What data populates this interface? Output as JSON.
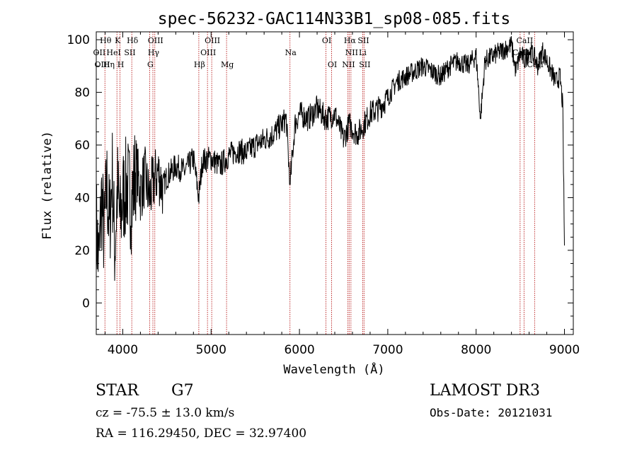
{
  "chart_data": {
    "type": "line",
    "title": "spec-56232-GAC114N33B1_sp08-085.fits",
    "xlabel": "Wavelength (Å)",
    "ylabel": "Flux (relative)",
    "xlim": [
      3700,
      9100
    ],
    "ylim": [
      -12,
      103
    ],
    "xticks": [
      4000,
      5000,
      6000,
      7000,
      8000,
      9000
    ],
    "yticks": [
      0,
      20,
      40,
      60,
      80,
      100
    ],
    "xtick_labels": [
      "4000",
      "5000",
      "6000",
      "7000",
      "8000",
      "9000"
    ],
    "ytick_labels": [
      "0",
      "20",
      "40",
      "60",
      "80",
      "100"
    ],
    "series": [
      {
        "name": "flux",
        "x": [
          3700,
          3730,
          3760,
          3790,
          3820,
          3850,
          3880,
          3910,
          3940,
          3970,
          4000,
          4050,
          4100,
          4150,
          4200,
          4250,
          4300,
          4350,
          4400,
          4450,
          4500,
          4600,
          4700,
          4800,
          4861,
          4900,
          5000,
          5100,
          5200,
          5300,
          5400,
          5500,
          5600,
          5700,
          5800,
          5850,
          5893,
          5950,
          6000,
          6100,
          6200,
          6300,
          6400,
          6500,
          6563,
          6650,
          6700,
          6800,
          6900,
          7000,
          7100,
          7200,
          7300,
          7400,
          7500,
          7600,
          7700,
          7800,
          7900,
          8000,
          8050,
          8100,
          8200,
          8300,
          8400,
          8450,
          8500,
          8550,
          8600,
          8650,
          8700,
          8750,
          8800,
          8850,
          8900,
          8950,
          8980,
          9000
        ],
        "y": [
          30,
          15,
          40,
          25,
          45,
          28,
          50,
          20,
          44,
          30,
          40,
          45,
          38,
          52,
          42,
          48,
          40,
          46,
          50,
          44,
          48,
          52,
          50,
          55,
          40,
          54,
          55,
          52,
          56,
          58,
          57,
          60,
          62,
          64,
          68,
          70,
          45,
          68,
          72,
          70,
          74,
          70,
          72,
          62,
          68,
          64,
          66,
          72,
          74,
          78,
          84,
          86,
          88,
          90,
          88,
          86,
          90,
          92,
          90,
          94,
          70,
          92,
          94,
          96,
          98,
          88,
          95,
          92,
          96,
          94,
          90,
          96,
          92,
          88,
          84,
          86,
          75,
          22
        ]
      }
    ],
    "lines": [
      {
        "name": "H-theta",
        "x": 3798
      },
      {
        "name": "K",
        "x": 3934
      },
      {
        "name": "H",
        "x": 3969
      },
      {
        "name": "H-delta",
        "x": 4102
      },
      {
        "name": "G",
        "x": 4304
      },
      {
        "name": "H-gamma",
        "x": 4341
      },
      {
        "name": "OIII-4363",
        "x": 4363
      },
      {
        "name": "H-beta",
        "x": 4861
      },
      {
        "name": "OIII-4959",
        "x": 4959
      },
      {
        "name": "OIII-5007",
        "x": 5007
      },
      {
        "name": "Mg",
        "x": 5175
      },
      {
        "name": "Na",
        "x": 5893
      },
      {
        "name": "OI-6300",
        "x": 6300
      },
      {
        "name": "OI-6364",
        "x": 6364
      },
      {
        "name": "NII-6548",
        "x": 6548
      },
      {
        "name": "H-alpha",
        "x": 6563
      },
      {
        "name": "NII-6583",
        "x": 6583
      },
      {
        "name": "SII-6716",
        "x": 6716
      },
      {
        "name": "SII-6731",
        "x": 6731
      },
      {
        "name": "CaII-8498",
        "x": 8498
      },
      {
        "name": "CaII-8542",
        "x": 8542
      },
      {
        "name": "CaII-8662",
        "x": 8662
      }
    ],
    "line_labels": [
      {
        "text": "Hθ",
        "x": 3798,
        "row": 0
      },
      {
        "text": "K",
        "x": 3934,
        "row": 0
      },
      {
        "text": "Hδ",
        "x": 4102,
        "row": 0
      },
      {
        "text": "OIII",
        "x": 4363,
        "row": 0
      },
      {
        "text": "OIII",
        "x": 5007,
        "row": 0
      },
      {
        "text": "OI",
        "x": 6300,
        "row": 0
      },
      {
        "text": "Hα",
        "x": 6563,
        "row": 0
      },
      {
        "text": "SII",
        "x": 6716,
        "row": 0
      },
      {
        "text": "CaII",
        "x": 8542,
        "row": 0
      },
      {
        "text": "OII",
        "x": 3727,
        "row": 1
      },
      {
        "text": "HeI",
        "x": 3889,
        "row": 1
      },
      {
        "text": "SII",
        "x": 4072,
        "row": 1
      },
      {
        "text": "Hγ",
        "x": 4341,
        "row": 1
      },
      {
        "text": "OIII",
        "x": 4959,
        "row": 1
      },
      {
        "text": "Na",
        "x": 5893,
        "row": 1
      },
      {
        "text": "NII",
        "x": 6583,
        "row": 1
      },
      {
        "text": "Li",
        "x": 6708,
        "row": 1
      },
      {
        "text": "CaII",
        "x": 8498,
        "row": 1
      },
      {
        "text": "OIII",
        "x": 3760,
        "row": 2
      },
      {
        "text": "Hη",
        "x": 3835,
        "row": 2
      },
      {
        "text": "H",
        "x": 3969,
        "row": 2
      },
      {
        "text": "G",
        "x": 4304,
        "row": 2
      },
      {
        "text": "Hβ",
        "x": 4861,
        "row": 2
      },
      {
        "text": "Mg",
        "x": 5175,
        "row": 2
      },
      {
        "text": "OI",
        "x": 6364,
        "row": 2
      },
      {
        "text": "NII",
        "x": 6548,
        "row": 2
      },
      {
        "text": "SII",
        "x": 6731,
        "row": 2
      },
      {
        "text": "CaII",
        "x": 8662,
        "row": 2
      }
    ]
  },
  "info": {
    "object_class": "STAR",
    "subclass": "G7",
    "redshift": "cz = -75.5 ± 13.0 km/s",
    "coords": "RA = 116.29450, DEC =  32.97400",
    "survey": "LAMOST DR3",
    "obs_date": "Obs-Date: 20121031"
  },
  "colors": {
    "spectrum": "#000000",
    "line_markers": "#b00000",
    "axes": "#000000"
  }
}
